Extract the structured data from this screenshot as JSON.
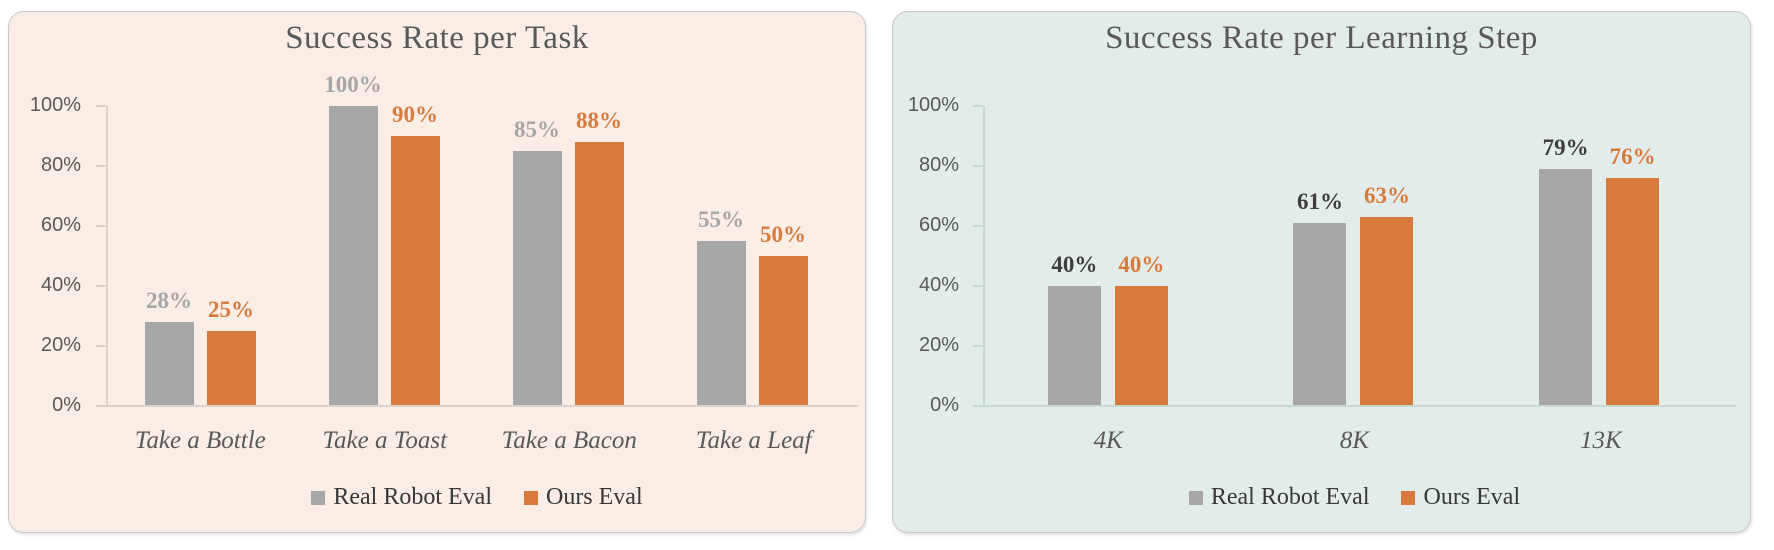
{
  "page_bg": "#ffffff",
  "panel_border_color": "#c9c9c9",
  "legend_text_color": "#383838",
  "chart_data": [
    {
      "type": "bar",
      "title": "Success Rate per Task",
      "categories": [
        "Take a Bottle",
        "Take a Toast",
        "Take a Bacon",
        "Take a Leaf"
      ],
      "series": [
        {
          "name": "Real Robot Eval",
          "values": [
            28,
            100,
            85,
            55
          ],
          "labels": [
            "28%",
            "100%",
            "85%",
            "55%"
          ],
          "bar_color": "#a7a7a7",
          "label_color": "#a6a6a6"
        },
        {
          "name": "Ours Eval",
          "values": [
            25,
            90,
            88,
            50
          ],
          "labels": [
            "25%",
            "90%",
            "88%",
            "50%"
          ],
          "bar_color": "#d97a3d",
          "label_color": "#d97a3d"
        }
      ],
      "y_ticks": [
        "100%",
        "80%",
        "60%",
        "40%",
        "20%",
        "0%"
      ],
      "ylim": [
        0,
        100
      ],
      "grid": false,
      "legend_position": "bottom",
      "panel_bg": "#faede5",
      "axis_color": "#dcd2c9",
      "text_color": "#595959"
    },
    {
      "type": "bar",
      "title": "Success Rate per Learning Step",
      "categories": [
        "4K",
        "8K",
        "13K"
      ],
      "series": [
        {
          "name": "Real Robot Eval",
          "values": [
            40,
            61,
            79
          ],
          "labels": [
            "40%",
            "61%",
            "79%"
          ],
          "bar_color": "#a7a7a7",
          "label_color": "#3e3e3e"
        },
        {
          "name": "Ours Eval",
          "values": [
            40,
            63,
            76
          ],
          "labels": [
            "40%",
            "63%",
            "76%"
          ],
          "bar_color": "#d97a3d",
          "label_color": "#d97a3d"
        }
      ],
      "y_ticks": [
        "100%",
        "80%",
        "60%",
        "40%",
        "20%",
        "0%"
      ],
      "ylim": [
        0,
        100
      ],
      "grid": false,
      "legend_position": "bottom",
      "panel_bg": "#e2eceb",
      "axis_color": "#c8d6d4",
      "text_color": "#595959"
    }
  ]
}
